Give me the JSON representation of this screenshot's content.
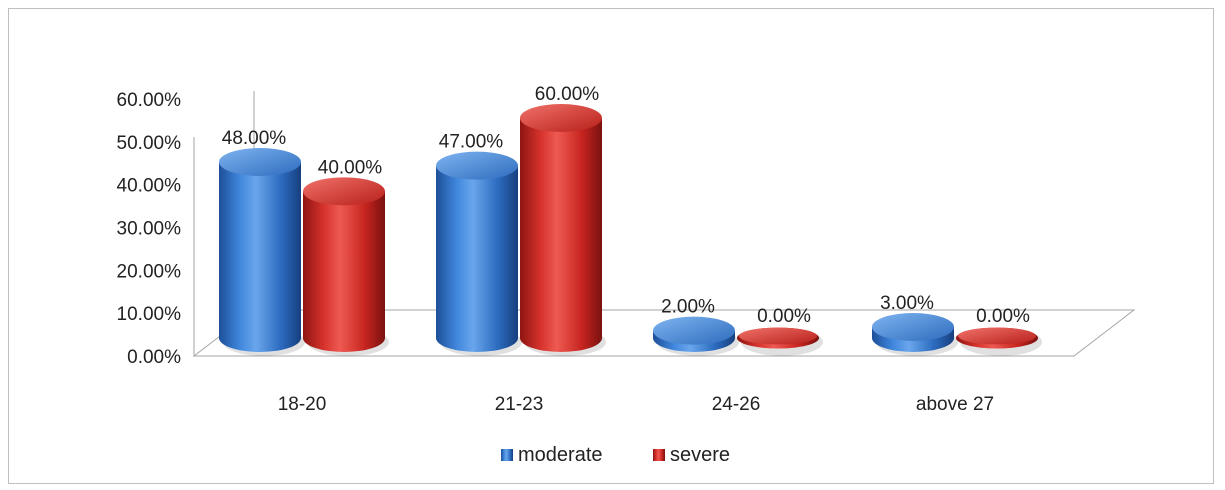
{
  "chart_data": {
    "type": "bar",
    "categories": [
      "18-20",
      "21-23",
      "24-26",
      "above 27"
    ],
    "series": [
      {
        "name": "moderate",
        "values": [
          48.0,
          47.0,
          2.0,
          3.0
        ],
        "labels": [
          "48.00%",
          "47.00%",
          "2.00%",
          "3.00%"
        ],
        "color": "#2f74c8"
      },
      {
        "name": "severe",
        "values": [
          40.0,
          60.0,
          0.0,
          0.0
        ],
        "labels": [
          "40.00%",
          "60.00%",
          "0.00%",
          "0.00%"
        ],
        "color": "#d02a25"
      }
    ],
    "y_ticks": [
      "0.00%",
      "10.00%",
      "20.00%",
      "30.00%",
      "40.00%",
      "50.00%",
      "60.00%"
    ],
    "ylim": [
      0,
      60
    ],
    "unit": "%",
    "grid": false,
    "legend_position": "bottom",
    "style": "3d-cylinder"
  }
}
